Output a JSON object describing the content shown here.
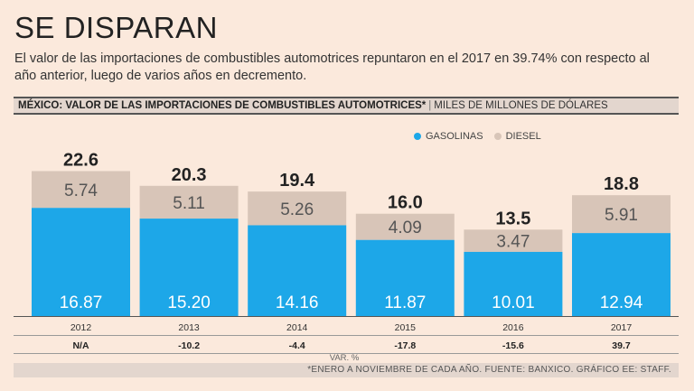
{
  "headline": "SE DISPARAN",
  "subtitle": "El valor de las importaciones de combustibles automotrices repuntaron en el 2017 en 39.74% con respecto al año anterior, luego de varios años en decremento.",
  "header": {
    "title": "MÉXICO: VALOR DE LAS IMPORTACIONES DE COMBUSTIBLES AUTOMOTRICES*",
    "unit": "MILES DE MILLONES DE DÓLARES"
  },
  "legend": [
    {
      "name": "GASOLINAS",
      "color": "#1da7e8"
    },
    {
      "name": "DIESEL",
      "color": "#d8c5b8"
    }
  ],
  "var_label": "VAR. %",
  "footnote": "*ENERO A NOVIEMBRE DE CADA AÑO.  FUENTE: BANXICO.  GRÁFICO EE: STAFF.",
  "chart_data": {
    "type": "bar",
    "stacked": true,
    "title": "MÉXICO: VALOR DE LAS IMPORTACIONES DE COMBUSTIBLES AUTOMOTRICES*",
    "ylabel": "MILES DE MILLONES DE DÓLARES",
    "categories": [
      "2012",
      "2013",
      "2014",
      "2015",
      "2016",
      "2017"
    ],
    "series": [
      {
        "name": "GASOLINAS",
        "values": [
          16.87,
          15.2,
          14.16,
          11.87,
          10.01,
          12.94
        ],
        "labels": [
          "16.87",
          "15.20",
          "14.16",
          "11.87",
          "10.01",
          "12.94"
        ],
        "color": "#1da7e8"
      },
      {
        "name": "DIESEL",
        "values": [
          5.74,
          5.11,
          5.26,
          4.09,
          3.47,
          5.91
        ],
        "labels": [
          "5.74",
          "5.11",
          "5.26",
          "4.09",
          "3.47",
          "5.91"
        ],
        "color": "#d8c5b8"
      }
    ],
    "totals": [
      "22.6",
      "20.3",
      "19.4",
      "16.0",
      "13.5",
      "18.8"
    ],
    "var_pct": [
      "N/A",
      "-10.2",
      "-4.4",
      "-17.8",
      "-15.6",
      "39.7"
    ],
    "ylim": [
      0,
      25
    ]
  }
}
